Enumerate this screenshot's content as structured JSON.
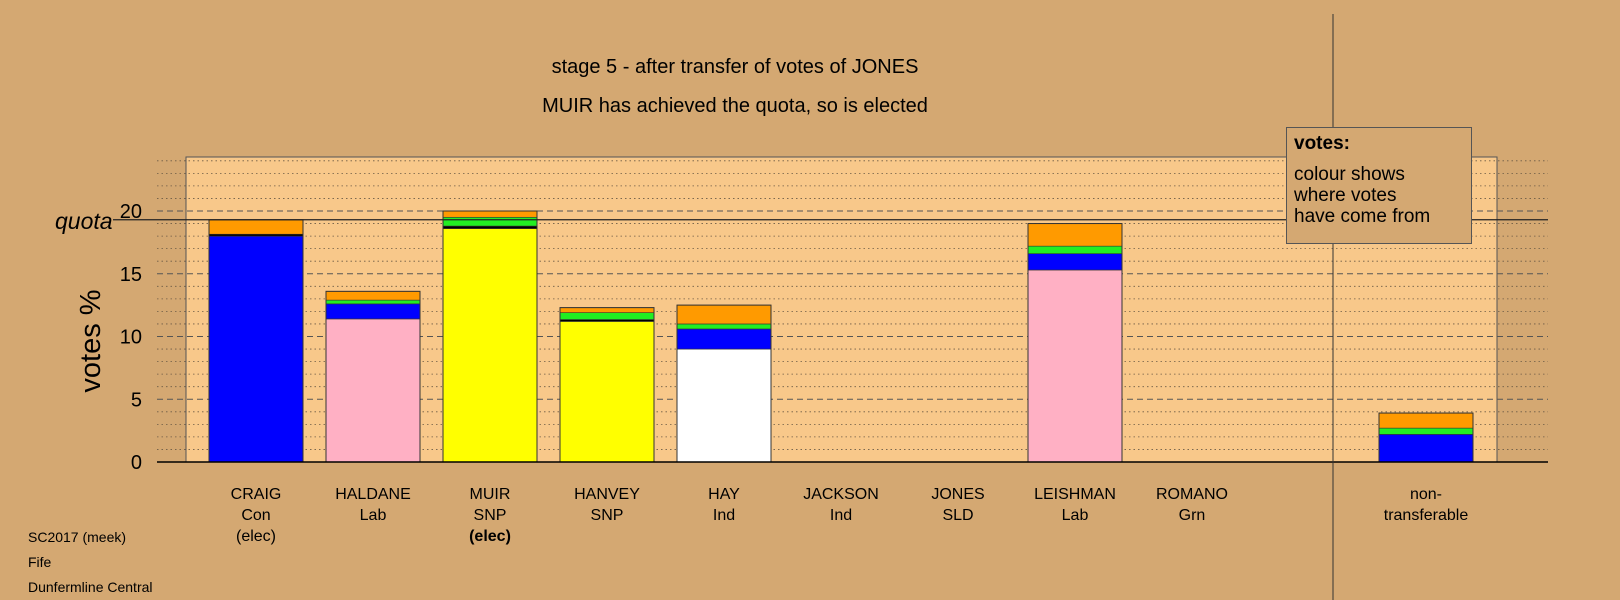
{
  "title": "stage 5 - after transfer of votes of JONES",
  "subtitle": "MUIR has achieved the quota, so is elected",
  "quota_label": "quota",
  "legend": {
    "title": "votes:",
    "lines": [
      "colour shows",
      "where votes",
      "have come from"
    ]
  },
  "footer": [
    "SC2017 (meek)",
    "Fife",
    "Dunfermline Central"
  ],
  "colors": {
    "background": "#d4a872",
    "plot_area": "#f8c88a",
    "Con": "#0000ff",
    "Lab": "#ffb0c4",
    "SNP": "#ffff00",
    "Ind": "#ffffff",
    "Grn": "#22ee22",
    "transfers": "#ff9a00"
  },
  "chart_data": {
    "type": "bar",
    "stacked": true,
    "ylabel": "votes %",
    "ylim": [
      0,
      20
    ],
    "yticks": [
      0,
      5,
      10,
      15,
      20
    ],
    "quota": 19.3,
    "grid": true,
    "candidates": [
      {
        "name": "CRAIG",
        "party": "Con",
        "status": "(elec)",
        "status_bold": false,
        "segments": [
          {
            "color": "#0000ff",
            "value": 18.0
          },
          {
            "color": "#000000",
            "value": 0.15
          },
          {
            "color": "#ff9a00",
            "value": 1.15
          }
        ]
      },
      {
        "name": "HALDANE",
        "party": "Lab",
        "status": "",
        "status_bold": false,
        "segments": [
          {
            "color": "#ffb0c4",
            "value": 11.4
          },
          {
            "color": "#0000ff",
            "value": 1.2
          },
          {
            "color": "#22ee22",
            "value": 0.3
          },
          {
            "color": "#ff9a00",
            "value": 0.7
          }
        ]
      },
      {
        "name": "MUIR",
        "party": "SNP",
        "status": "(elec)",
        "status_bold": true,
        "segments": [
          {
            "color": "#ffff00",
            "value": 18.6
          },
          {
            "color": "#000000",
            "value": 0.2
          },
          {
            "color": "#22ee22",
            "value": 0.7
          },
          {
            "color": "#ff9a00",
            "value": 0.5
          }
        ]
      },
      {
        "name": "HANVEY",
        "party": "SNP",
        "status": "",
        "status_bold": false,
        "segments": [
          {
            "color": "#ffff00",
            "value": 11.2
          },
          {
            "color": "#000000",
            "value": 0.15
          },
          {
            "color": "#22ee22",
            "value": 0.55
          },
          {
            "color": "#ff9a00",
            "value": 0.4
          }
        ]
      },
      {
        "name": "HAY",
        "party": "Ind",
        "status": "",
        "status_bold": false,
        "segments": [
          {
            "color": "#ffffff",
            "value": 9.0
          },
          {
            "color": "#0000ff",
            "value": 1.6
          },
          {
            "color": "#22ee22",
            "value": 0.4
          },
          {
            "color": "#ff9a00",
            "value": 1.5
          }
        ]
      },
      {
        "name": "JACKSON",
        "party": "Ind",
        "status": "",
        "status_bold": false,
        "segments": []
      },
      {
        "name": "JONES",
        "party": "SLD",
        "status": "",
        "status_bold": false,
        "segments": []
      },
      {
        "name": "LEISHMAN",
        "party": "Lab",
        "status": "",
        "status_bold": false,
        "segments": [
          {
            "color": "#ffb0c4",
            "value": 15.3
          },
          {
            "color": "#0000ff",
            "value": 1.3
          },
          {
            "color": "#22ee22",
            "value": 0.6
          },
          {
            "color": "#ff9a00",
            "value": 1.8
          }
        ]
      },
      {
        "name": "ROMANO",
        "party": "Grn",
        "status": "",
        "status_bold": false,
        "segments": []
      }
    ],
    "nontransferable": {
      "label": [
        "non-",
        "transferable"
      ],
      "segments": [
        {
          "color": "#0000ff",
          "value": 2.2
        },
        {
          "color": "#22ee22",
          "value": 0.5
        },
        {
          "color": "#ff9a00",
          "value": 1.2
        }
      ]
    }
  }
}
